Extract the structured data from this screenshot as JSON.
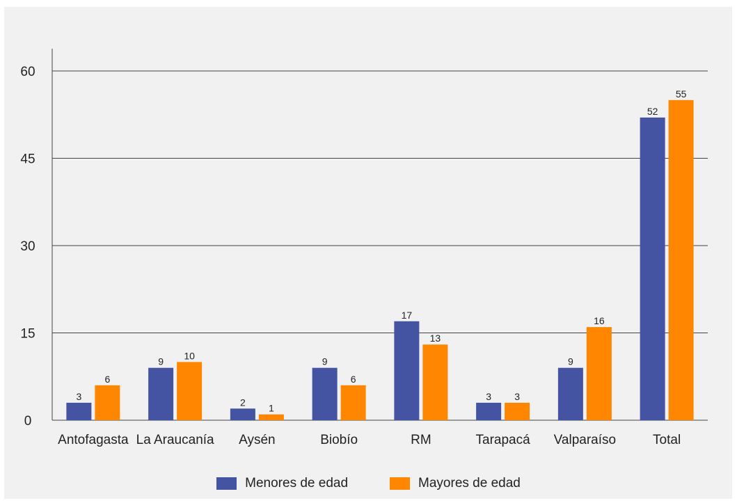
{
  "chart_data": {
    "type": "bar",
    "categories": [
      "Antofagasta",
      "La Araucanía",
      "Aysén",
      "Biobío",
      "RM",
      "Tarapacá",
      "Valparaíso",
      "Total"
    ],
    "series": [
      {
        "name": "Menores de edad",
        "color": "#4453a2",
        "values": [
          3,
          9,
          2,
          9,
          17,
          3,
          9,
          52
        ]
      },
      {
        "name": "Mayores de edad",
        "color": "#ff8600",
        "values": [
          6,
          10,
          1,
          6,
          13,
          3,
          16,
          55
        ]
      }
    ],
    "yticks": [
      "0",
      "15",
      "30",
      "45",
      "60"
    ],
    "ylim": [
      0,
      60
    ],
    "grid": true,
    "legend_position": "bottom"
  }
}
